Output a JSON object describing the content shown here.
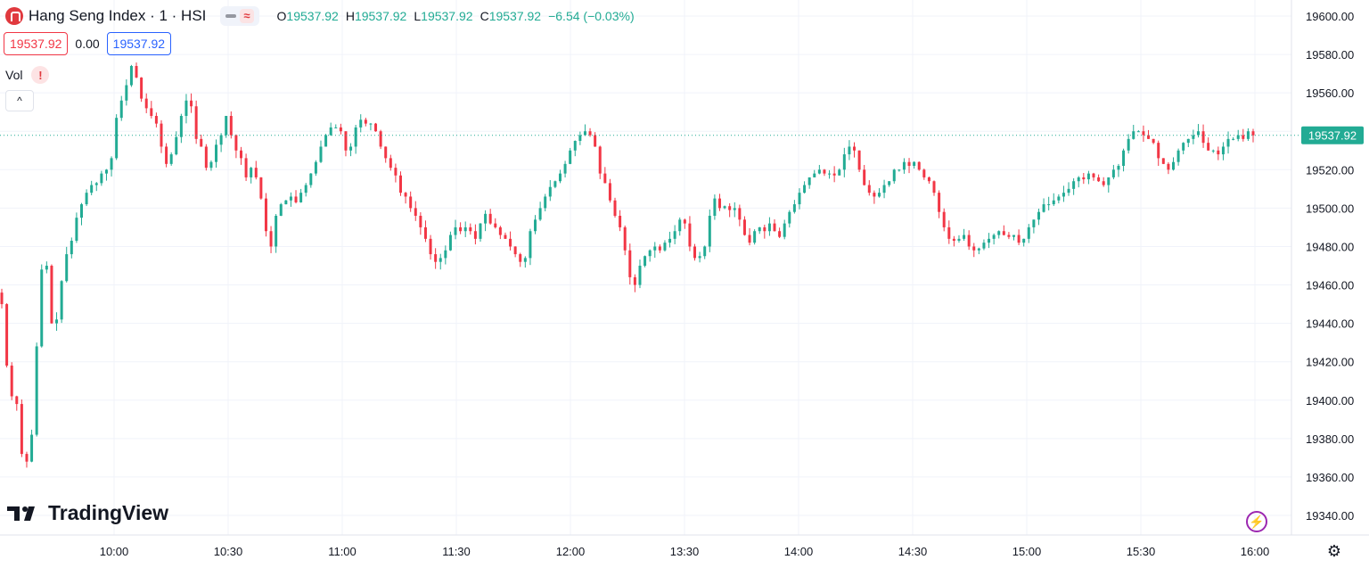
{
  "header": {
    "title": "Hang Seng Index · 1 · HSI",
    "pill_icon": "line-style-icon",
    "wave_label": "≈",
    "ohlc": [
      {
        "key": "O",
        "value": "19537.92"
      },
      {
        "key": "H",
        "value": "19537.92"
      },
      {
        "key": "L",
        "value": "19537.92"
      },
      {
        "key": "C",
        "value": "19537.92"
      }
    ],
    "change": "−6.54 (−0.03%)"
  },
  "price_boxes": {
    "sell": "19537.92",
    "spread": "0.00",
    "buy": "19537.92"
  },
  "volume": {
    "label": "Vol",
    "warn": "!"
  },
  "collapse_label": "^",
  "brand": {
    "name": "TradingView"
  },
  "colors": {
    "up": "#22ab94",
    "down": "#f23645",
    "grid": "#f0f3fa",
    "last_price": "#22ab94"
  },
  "chart_data": {
    "type": "candlestick",
    "title": "Hang Seng Index · 1 · HSI",
    "y_ticks": [
      19340,
      19360,
      19380,
      19400,
      19420,
      19440,
      19460,
      19480,
      19500,
      19520,
      19540,
      19560,
      19580,
      19600
    ],
    "y_tick_labels": [
      "19340.00",
      "19360.00",
      "19380.00",
      "19400.00",
      "19420.00",
      "19440.00",
      "19460.00",
      "19480.00",
      "19500.00",
      "19520.00",
      "19540.00",
      "19560.00",
      "19580.00",
      "19600.00"
    ],
    "x_ticks": [
      "10:00",
      "10:30",
      "11:00",
      "11:30",
      "12:00",
      "13:30",
      "14:00",
      "14:30",
      "15:00",
      "15:30",
      "16:00"
    ],
    "last_price": 19537.92,
    "last_price_label": "19537.92",
    "grid": true,
    "close_series": [
      19450,
      19418,
      19402,
      19398,
      19372,
      19368,
      19382,
      19428,
      19468,
      19470,
      19440,
      19442,
      19462,
      19476,
      19483,
      19495,
      19502,
      19508,
      19512,
      19513,
      19518,
      19520,
      19526,
      19547,
      19556,
      19564,
      19574,
      19568,
      19557,
      19552,
      19548,
      19544,
      19532,
      19523,
      19528,
      19537,
      19548,
      19556,
      19553,
      19536,
      19532,
      19521,
      19524,
      19533,
      19538,
      19548,
      19538,
      19530,
      19526,
      19516,
      19521,
      19516,
      19505,
      19488,
      19480,
      19496,
      19502,
      19504,
      19506,
      19503,
      19508,
      19512,
      19518,
      19524,
      19532,
      19538,
      19542,
      19542,
      19540,
      19530,
      19532,
      19542,
      19546,
      19544,
      19544,
      19540,
      19532,
      19526,
      19521,
      19517,
      19508,
      19506,
      19500,
      19496,
      19490,
      19484,
      19476,
      19472,
      19474,
      19478,
      19486,
      19490,
      19488,
      19490,
      19488,
      19484,
      19492,
      19497,
      19492,
      19490,
      19486,
      19484,
      19480,
      19476,
      19472,
      19474,
      19488,
      19494,
      19500,
      19506,
      19511,
      19514,
      19518,
      19523,
      19530,
      19535,
      19538,
      19540,
      19538,
      19532,
      19518,
      19513,
      19504,
      19496,
      19490,
      19478,
      19464,
      19460,
      19470,
      19475,
      19478,
      19480,
      19478,
      19482,
      19484,
      19488,
      19494,
      19492,
      19480,
      19474,
      19475,
      19480,
      19496,
      19505,
      19500,
      19501,
      19499,
      19500,
      19494,
      19486,
      19482,
      19488,
      19490,
      19488,
      19492,
      19488,
      19485,
      19492,
      19498,
      19502,
      19508,
      19512,
      19516,
      19518,
      19520,
      19518,
      19518,
      19517,
      19520,
      19528,
      19532,
      19530,
      19520,
      19512,
      19508,
      19506,
      19508,
      19512,
      19514,
      19520,
      19520,
      19524,
      19522,
      19524,
      19520,
      19516,
      19514,
      19508,
      19498,
      19490,
      19484,
      19483,
      19484,
      19486,
      19480,
      19478,
      19479,
      19482,
      19484,
      19486,
      19488,
      19486,
      19485,
      19486,
      19482,
      19484,
      19490,
      19494,
      19498,
      19502,
      19502,
      19504,
      19506,
      19508,
      19510,
      19514,
      19516,
      19515,
      19518,
      19516,
      19514,
      19512,
      19516,
      19520,
      19522,
      19530,
      19536,
      19540,
      19540,
      19538,
      19536,
      19534,
      19526,
      19523,
      19520,
      19524,
      19530,
      19534,
      19536,
      19538,
      19540,
      19534,
      19530,
      19530,
      19528,
      19532,
      19536,
      19536,
      19538,
      19536,
      19540,
      19537.92
    ]
  }
}
